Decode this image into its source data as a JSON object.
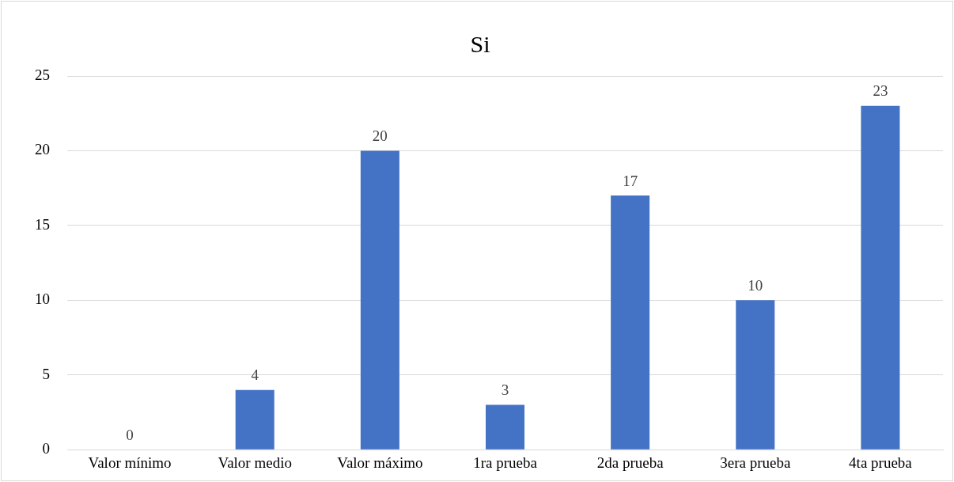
{
  "chart_data": {
    "type": "bar",
    "title": "Si",
    "categories": [
      "Valor mínimo",
      "Valor medio",
      "Valor máximo",
      "1ra prueba",
      "2da prueba",
      "3era prueba",
      "4ta prueba"
    ],
    "values": [
      0,
      4,
      20,
      3,
      17,
      10,
      23
    ],
    "color": "#4472c4",
    "ylim": [
      0,
      25
    ],
    "yticks": [
      0,
      5,
      10,
      15,
      20,
      25
    ],
    "grid": "y",
    "data_labels": true,
    "legend": false
  }
}
